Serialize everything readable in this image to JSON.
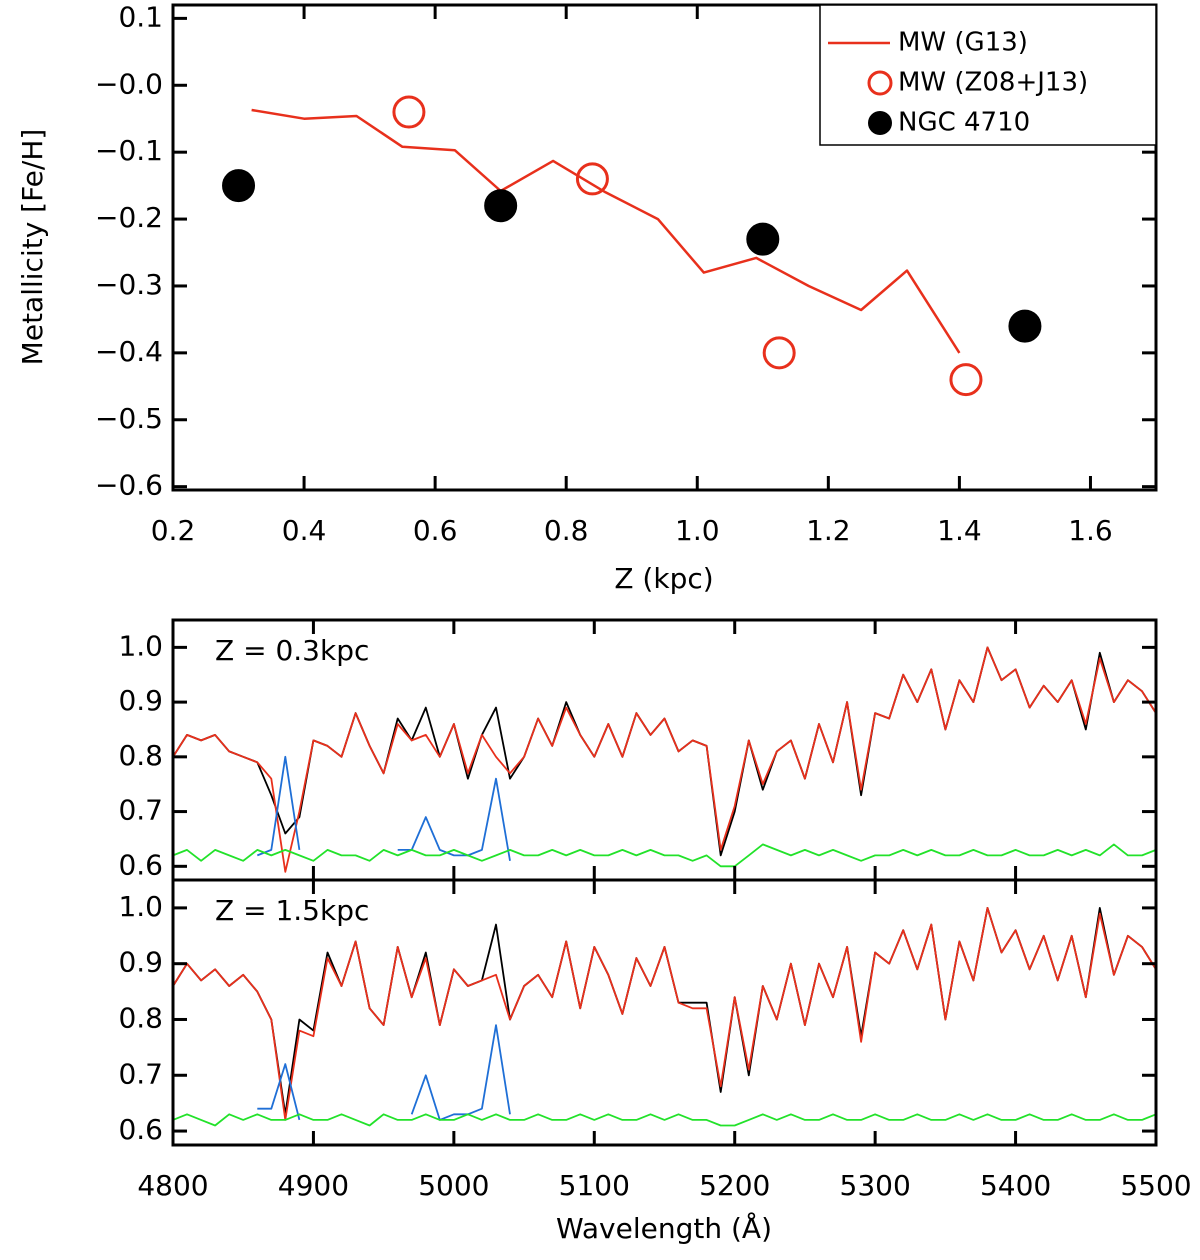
{
  "chart_data": [
    {
      "type": "line",
      "xlabel": "Z (kpc)",
      "ylabel": "Metallicity [Fe/H]",
      "xlim": [
        0.2,
        1.7
      ],
      "ylim": [
        -0.605,
        0.12
      ],
      "xticks": [
        0.2,
        0.4,
        0.6,
        0.8,
        {
          "value": 1,
          "label": "1.0"
        },
        1.2,
        1.4,
        1.6
      ],
      "yticks": [
        {
          "value": -0.6,
          "label": "−0.6"
        },
        {
          "value": -0.5,
          "label": "−0.5"
        },
        {
          "value": -0.4,
          "label": "−0.4"
        },
        {
          "value": -0.3,
          "label": "−0.3"
        },
        {
          "value": -0.2,
          "label": "−0.2"
        },
        {
          "value": -0.1,
          "label": "−0.1"
        },
        {
          "value": 0,
          "label": "−0.0"
        },
        0.1
      ],
      "legend": "upper right",
      "series": [
        {
          "name": "MW (G13)",
          "color": "#e8301c",
          "marker": "line",
          "x": [
            0.32,
            0.4,
            0.48,
            0.55,
            0.63,
            0.7,
            0.78,
            0.86,
            0.94,
            1.01,
            1.09,
            1.17,
            1.25,
            1.32,
            1.4
          ],
          "values": [
            -0.037,
            -0.05,
            -0.046,
            -0.092,
            -0.097,
            -0.158,
            -0.113,
            -0.16,
            -0.2,
            -0.28,
            -0.258,
            -0.3,
            -0.336,
            -0.277,
            -0.4
          ]
        },
        {
          "name": "MW (Z08+J13)",
          "color": "#e8301c",
          "marker": "open-circle",
          "x": [
            0.56,
            0.84,
            1.125,
            1.41
          ],
          "values": [
            -0.04,
            -0.14,
            -0.4,
            -0.44
          ]
        },
        {
          "name": "NGC 4710",
          "color": "#000000",
          "marker": "filled-circle",
          "x": [
            0.3,
            0.7,
            1.1,
            1.5
          ],
          "values": [
            -0.15,
            -0.18,
            -0.23,
            -0.36
          ]
        }
      ]
    },
    {
      "type": "line",
      "annotation": "Z = 0.3kpc",
      "xlim": [
        4800,
        5500
      ],
      "ylim": [
        0.575,
        1.05
      ],
      "yticks": [
        0.6,
        0.7,
        0.8,
        0.9,
        {
          "value": 1,
          "label": "1.0"
        }
      ],
      "x": [
        4800,
        4810,
        4820,
        4830,
        4840,
        4850,
        4860,
        4870,
        4880,
        4890,
        4900,
        4910,
        4920,
        4930,
        4940,
        4950,
        4960,
        4970,
        4980,
        4990,
        5000,
        5010,
        5020,
        5030,
        5040,
        5050,
        5060,
        5070,
        5080,
        5090,
        5100,
        5110,
        5120,
        5130,
        5140,
        5150,
        5160,
        5170,
        5180,
        5190,
        5200,
        5210,
        5220,
        5230,
        5240,
        5250,
        5260,
        5270,
        5280,
        5290,
        5300,
        5310,
        5320,
        5330,
        5340,
        5350,
        5360,
        5370,
        5380,
        5390,
        5400,
        5410,
        5420,
        5430,
        5440,
        5450,
        5460,
        5470,
        5480,
        5490,
        5500
      ],
      "series": [
        {
          "color": "#000000",
          "values": [
            0.8,
            0.84,
            0.83,
            0.84,
            0.81,
            0.8,
            0.79,
            0.73,
            0.66,
            0.69,
            0.83,
            0.82,
            0.8,
            0.88,
            0.82,
            0.77,
            0.87,
            0.83,
            0.89,
            0.8,
            0.86,
            0.76,
            0.84,
            0.89,
            0.76,
            0.8,
            0.87,
            0.82,
            0.9,
            0.84,
            0.8,
            0.86,
            0.8,
            0.88,
            0.84,
            0.87,
            0.81,
            0.83,
            0.82,
            0.62,
            0.7,
            0.83,
            0.74,
            0.81,
            0.83,
            0.76,
            0.86,
            0.79,
            0.9,
            0.73,
            0.88,
            0.87,
            0.95,
            0.9,
            0.96,
            0.85,
            0.94,
            0.9,
            1.0,
            0.94,
            0.96,
            0.89,
            0.93,
            0.9,
            0.94,
            0.85,
            0.99,
            0.9,
            0.94,
            0.92,
            0.88
          ]
        },
        {
          "color": "#e8301c",
          "values": [
            0.8,
            0.84,
            0.83,
            0.84,
            0.81,
            0.8,
            0.79,
            0.76,
            0.59,
            0.7,
            0.83,
            0.82,
            0.8,
            0.88,
            0.82,
            0.77,
            0.86,
            0.83,
            0.84,
            0.8,
            0.86,
            0.77,
            0.84,
            0.8,
            0.77,
            0.8,
            0.87,
            0.82,
            0.89,
            0.84,
            0.8,
            0.86,
            0.8,
            0.88,
            0.84,
            0.87,
            0.81,
            0.83,
            0.82,
            0.63,
            0.71,
            0.83,
            0.75,
            0.81,
            0.83,
            0.76,
            0.86,
            0.79,
            0.9,
            0.74,
            0.88,
            0.87,
            0.95,
            0.9,
            0.96,
            0.85,
            0.94,
            0.9,
            1.0,
            0.94,
            0.96,
            0.89,
            0.93,
            0.9,
            0.94,
            0.86,
            0.98,
            0.9,
            0.94,
            0.92,
            0.88
          ]
        },
        {
          "color": "#1f6fd6",
          "values": [
            null,
            null,
            null,
            null,
            null,
            null,
            0.62,
            0.63,
            0.8,
            0.63,
            null,
            null,
            null,
            null,
            null,
            null,
            0.63,
            0.63,
            0.69,
            0.63,
            0.62,
            0.62,
            0.63,
            0.76,
            0.61,
            null,
            null,
            null,
            null,
            null,
            null,
            null,
            null,
            null,
            null,
            null,
            null,
            null,
            null,
            null,
            null,
            null,
            null,
            null,
            null,
            null,
            null,
            null,
            null,
            null,
            null,
            null,
            null,
            null,
            null,
            null,
            null,
            null,
            null,
            null,
            null,
            null,
            null,
            null,
            null,
            null,
            null,
            null,
            null,
            null,
            null
          ]
        },
        {
          "color": "#22e22a",
          "values": [
            0.62,
            0.63,
            0.61,
            0.63,
            0.62,
            0.61,
            0.63,
            0.62,
            0.63,
            0.62,
            0.61,
            0.63,
            0.62,
            0.62,
            0.61,
            0.63,
            0.62,
            0.63,
            0.62,
            0.62,
            0.63,
            0.62,
            0.61,
            0.62,
            0.63,
            0.62,
            0.62,
            0.63,
            0.62,
            0.63,
            0.62,
            0.62,
            0.63,
            0.62,
            0.63,
            0.62,
            0.62,
            0.61,
            0.62,
            0.6,
            0.6,
            0.62,
            0.64,
            0.63,
            0.62,
            0.63,
            0.62,
            0.63,
            0.62,
            0.61,
            0.62,
            0.62,
            0.63,
            0.62,
            0.63,
            0.62,
            0.62,
            0.63,
            0.62,
            0.62,
            0.63,
            0.62,
            0.62,
            0.63,
            0.62,
            0.63,
            0.62,
            0.64,
            0.62,
            0.62,
            0.63
          ]
        }
      ]
    },
    {
      "type": "line",
      "annotation": "Z = 1.5kpc",
      "xlabel": "Wavelength (Å)",
      "xlim": [
        4800,
        5500
      ],
      "ylim": [
        0.575,
        1.05
      ],
      "xticks": [
        4800,
        4900,
        5000,
        5100,
        5200,
        5300,
        5400,
        5500
      ],
      "yticks": [
        0.6,
        0.7,
        0.8,
        0.9,
        {
          "value": 1,
          "label": "1.0"
        }
      ],
      "x": [
        4800,
        4810,
        4820,
        4830,
        4840,
        4850,
        4860,
        4870,
        4880,
        4890,
        4900,
        4910,
        4920,
        4930,
        4940,
        4950,
        4960,
        4970,
        4980,
        4990,
        5000,
        5010,
        5020,
        5030,
        5040,
        5050,
        5060,
        5070,
        5080,
        5090,
        5100,
        5110,
        5120,
        5130,
        5140,
        5150,
        5160,
        5170,
        5180,
        5190,
        5200,
        5210,
        5220,
        5230,
        5240,
        5250,
        5260,
        5270,
        5280,
        5290,
        5300,
        5310,
        5320,
        5330,
        5340,
        5350,
        5360,
        5370,
        5380,
        5390,
        5400,
        5410,
        5420,
        5430,
        5440,
        5450,
        5460,
        5470,
        5480,
        5490,
        5500
      ],
      "series": [
        {
          "color": "#000000",
          "values": [
            0.86,
            0.9,
            0.87,
            0.89,
            0.86,
            0.88,
            0.85,
            0.8,
            0.63,
            0.8,
            0.78,
            0.92,
            0.86,
            0.94,
            0.82,
            0.79,
            0.93,
            0.84,
            0.92,
            0.79,
            0.89,
            0.86,
            0.87,
            0.97,
            0.8,
            0.86,
            0.88,
            0.84,
            0.94,
            0.82,
            0.93,
            0.88,
            0.81,
            0.91,
            0.86,
            0.93,
            0.83,
            0.83,
            0.83,
            0.67,
            0.84,
            0.7,
            0.86,
            0.8,
            0.9,
            0.79,
            0.9,
            0.84,
            0.93,
            0.77,
            0.92,
            0.9,
            0.96,
            0.89,
            0.97,
            0.8,
            0.94,
            0.87,
            1.0,
            0.92,
            0.96,
            0.89,
            0.95,
            0.87,
            0.95,
            0.84,
            1.0,
            0.88,
            0.95,
            0.93,
            0.89
          ]
        },
        {
          "color": "#e8301c",
          "values": [
            0.86,
            0.9,
            0.87,
            0.89,
            0.86,
            0.88,
            0.85,
            0.8,
            0.62,
            0.78,
            0.77,
            0.91,
            0.86,
            0.94,
            0.82,
            0.79,
            0.93,
            0.84,
            0.91,
            0.79,
            0.89,
            0.86,
            0.87,
            0.88,
            0.8,
            0.86,
            0.88,
            0.84,
            0.94,
            0.82,
            0.93,
            0.88,
            0.81,
            0.91,
            0.86,
            0.93,
            0.83,
            0.82,
            0.82,
            0.68,
            0.84,
            0.71,
            0.86,
            0.8,
            0.9,
            0.79,
            0.9,
            0.84,
            0.93,
            0.76,
            0.92,
            0.9,
            0.96,
            0.89,
            0.97,
            0.8,
            0.94,
            0.87,
            1.0,
            0.92,
            0.96,
            0.89,
            0.95,
            0.87,
            0.95,
            0.84,
            0.99,
            0.88,
            0.95,
            0.93,
            0.89
          ]
        },
        {
          "color": "#1f6fd6",
          "values": [
            null,
            null,
            null,
            null,
            null,
            null,
            0.64,
            0.64,
            0.72,
            0.62,
            null,
            null,
            null,
            null,
            null,
            null,
            null,
            0.63,
            0.7,
            0.62,
            0.63,
            0.63,
            0.64,
            0.79,
            0.63,
            null,
            null,
            null,
            null,
            null,
            null,
            null,
            null,
            null,
            null,
            null,
            null,
            null,
            null,
            null,
            null,
            null,
            null,
            null,
            null,
            null,
            null,
            null,
            null,
            null,
            null,
            null,
            null,
            null,
            null,
            null,
            null,
            null,
            null,
            null,
            null,
            null,
            null,
            null,
            null,
            null,
            null,
            null,
            null,
            null,
            null
          ]
        },
        {
          "color": "#22e22a",
          "values": [
            0.62,
            0.63,
            0.62,
            0.61,
            0.63,
            0.62,
            0.63,
            0.62,
            0.62,
            0.63,
            0.62,
            0.62,
            0.63,
            0.62,
            0.61,
            0.63,
            0.62,
            0.62,
            0.63,
            0.62,
            0.62,
            0.63,
            0.62,
            0.63,
            0.62,
            0.62,
            0.63,
            0.62,
            0.62,
            0.63,
            0.62,
            0.63,
            0.62,
            0.62,
            0.63,
            0.62,
            0.63,
            0.62,
            0.62,
            0.61,
            0.61,
            0.62,
            0.63,
            0.62,
            0.63,
            0.62,
            0.62,
            0.63,
            0.62,
            0.62,
            0.63,
            0.62,
            0.62,
            0.63,
            0.62,
            0.62,
            0.63,
            0.62,
            0.63,
            0.62,
            0.62,
            0.63,
            0.62,
            0.62,
            0.63,
            0.62,
            0.62,
            0.63,
            0.62,
            0.62,
            0.63
          ]
        }
      ]
    }
  ]
}
